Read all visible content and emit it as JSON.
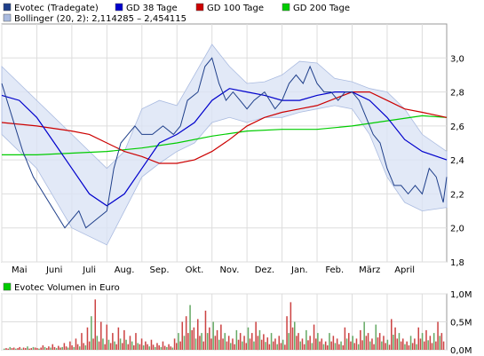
{
  "chart_data": [
    {
      "type": "line",
      "title": "",
      "xlabel": "",
      "ylabel": "",
      "ylim": [
        1.8,
        3.2
      ],
      "yticks": [
        1.8,
        2.0,
        2.2,
        2.4,
        2.6,
        2.8,
        3.0
      ],
      "ytick_labels": [
        "1,8",
        "2,0",
        "2,2",
        "2,4",
        "2,6",
        "2,8",
        "3,0"
      ],
      "x_range_months": [
        0,
        12.7
      ],
      "month_ticks": [
        0,
        1,
        2,
        3,
        4,
        5,
        6,
        7,
        8,
        9,
        10,
        11,
        12
      ],
      "month_labels": [
        "Mai",
        "Juni",
        "Juli",
        "Aug.",
        "Sep.",
        "Okt.",
        "Nov.",
        "Dez.",
        "Jan.",
        "Feb.",
        "März",
        "April"
      ],
      "grid": true,
      "legend_position": "top",
      "legend": [
        {
          "label": "Evotec (Tradegate)",
          "color": "#1f3f8a"
        },
        {
          "label": "GD 38 Tage",
          "color": "#0000cc"
        },
        {
          "label": "GD 100 Tage",
          "color": "#cc0000"
        },
        {
          "label": "GD 200 Tage",
          "color": "#00cc00"
        },
        {
          "label": "Bollinger (20, 2): 2,114285 – 2,454115",
          "color": "#aabbe0"
        }
      ],
      "series": [
        {
          "name": "Evotec (Tradegate)",
          "color": "#1f3f8a",
          "points": [
            [
              0,
              2.85
            ],
            [
              0.3,
              2.65
            ],
            [
              0.6,
              2.45
            ],
            [
              0.9,
              2.3
            ],
            [
              1.2,
              2.2
            ],
            [
              1.5,
              2.1
            ],
            [
              1.8,
              2.0
            ],
            [
              2.0,
              2.05
            ],
            [
              2.2,
              2.1
            ],
            [
              2.4,
              2.0
            ],
            [
              2.7,
              2.05
            ],
            [
              3.0,
              2.1
            ],
            [
              3.2,
              2.35
            ],
            [
              3.4,
              2.5
            ],
            [
              3.6,
              2.55
            ],
            [
              3.8,
              2.6
            ],
            [
              4.0,
              2.55
            ],
            [
              4.3,
              2.55
            ],
            [
              4.6,
              2.6
            ],
            [
              4.9,
              2.55
            ],
            [
              5.1,
              2.6
            ],
            [
              5.3,
              2.75
            ],
            [
              5.6,
              2.8
            ],
            [
              5.8,
              2.95
            ],
            [
              6.0,
              3.0
            ],
            [
              6.2,
              2.85
            ],
            [
              6.4,
              2.75
            ],
            [
              6.6,
              2.8
            ],
            [
              6.8,
              2.75
            ],
            [
              7.0,
              2.7
            ],
            [
              7.2,
              2.75
            ],
            [
              7.5,
              2.8
            ],
            [
              7.8,
              2.7
            ],
            [
              8.0,
              2.75
            ],
            [
              8.2,
              2.85
            ],
            [
              8.4,
              2.9
            ],
            [
              8.6,
              2.85
            ],
            [
              8.8,
              2.95
            ],
            [
              9.0,
              2.85
            ],
            [
              9.2,
              2.8
            ],
            [
              9.4,
              2.8
            ],
            [
              9.6,
              2.75
            ],
            [
              9.8,
              2.8
            ],
            [
              10.0,
              2.8
            ],
            [
              10.2,
              2.75
            ],
            [
              10.4,
              2.65
            ],
            [
              10.6,
              2.55
            ],
            [
              10.8,
              2.5
            ],
            [
              11.0,
              2.35
            ],
            [
              11.2,
              2.25
            ],
            [
              11.4,
              2.25
            ],
            [
              11.6,
              2.2
            ],
            [
              11.8,
              2.25
            ],
            [
              12.0,
              2.2
            ],
            [
              12.2,
              2.35
            ],
            [
              12.4,
              2.3
            ],
            [
              12.6,
              2.15
            ],
            [
              12.7,
              2.3
            ]
          ]
        },
        {
          "name": "GD 38 Tage",
          "color": "#0000cc",
          "points": [
            [
              0,
              2.78
            ],
            [
              0.5,
              2.75
            ],
            [
              1.0,
              2.65
            ],
            [
              1.5,
              2.5
            ],
            [
              2.0,
              2.35
            ],
            [
              2.5,
              2.2
            ],
            [
              3.0,
              2.13
            ],
            [
              3.5,
              2.2
            ],
            [
              4.0,
              2.35
            ],
            [
              4.5,
              2.5
            ],
            [
              5.0,
              2.55
            ],
            [
              5.5,
              2.62
            ],
            [
              6.0,
              2.75
            ],
            [
              6.5,
              2.82
            ],
            [
              7.0,
              2.8
            ],
            [
              7.5,
              2.78
            ],
            [
              8.0,
              2.75
            ],
            [
              8.5,
              2.75
            ],
            [
              9.0,
              2.78
            ],
            [
              9.5,
              2.8
            ],
            [
              10.0,
              2.8
            ],
            [
              10.5,
              2.75
            ],
            [
              11.0,
              2.65
            ],
            [
              11.5,
              2.52
            ],
            [
              12.0,
              2.45
            ],
            [
              12.7,
              2.4
            ]
          ]
        },
        {
          "name": "GD 100 Tage",
          "color": "#cc0000",
          "points": [
            [
              0,
              2.62
            ],
            [
              1.0,
              2.6
            ],
            [
              2.0,
              2.57
            ],
            [
              2.5,
              2.55
            ],
            [
              3.0,
              2.5
            ],
            [
              3.5,
              2.45
            ],
            [
              4.0,
              2.42
            ],
            [
              4.5,
              2.38
            ],
            [
              5.0,
              2.38
            ],
            [
              5.5,
              2.4
            ],
            [
              6.0,
              2.45
            ],
            [
              6.5,
              2.52
            ],
            [
              7.0,
              2.6
            ],
            [
              7.5,
              2.65
            ],
            [
              8.0,
              2.68
            ],
            [
              8.5,
              2.7
            ],
            [
              9.0,
              2.72
            ],
            [
              9.5,
              2.76
            ],
            [
              10.0,
              2.8
            ],
            [
              10.5,
              2.8
            ],
            [
              11.0,
              2.75
            ],
            [
              11.5,
              2.7
            ],
            [
              12.0,
              2.68
            ],
            [
              12.7,
              2.65
            ]
          ]
        },
        {
          "name": "GD 200 Tage",
          "color": "#00cc00",
          "points": [
            [
              0,
              2.43
            ],
            [
              1.0,
              2.43
            ],
            [
              2.0,
              2.44
            ],
            [
              3.0,
              2.45
            ],
            [
              4.0,
              2.47
            ],
            [
              5.0,
              2.5
            ],
            [
              6.0,
              2.54
            ],
            [
              7.0,
              2.57
            ],
            [
              8.0,
              2.58
            ],
            [
              9.0,
              2.58
            ],
            [
              10.0,
              2.6
            ],
            [
              11.0,
              2.63
            ],
            [
              12.0,
              2.66
            ],
            [
              12.7,
              2.65
            ]
          ]
        }
      ],
      "bollinger_band": {
        "label": "Bollinger (20, 2): 2,114285 – 2,454115",
        "upper": [
          [
            0,
            2.95
          ],
          [
            1.0,
            2.75
          ],
          [
            2.0,
            2.55
          ],
          [
            3.0,
            2.35
          ],
          [
            3.5,
            2.45
          ],
          [
            4.0,
            2.7
          ],
          [
            4.5,
            2.75
          ],
          [
            5.0,
            2.72
          ],
          [
            5.5,
            2.9
          ],
          [
            6.0,
            3.08
          ],
          [
            6.5,
            2.95
          ],
          [
            7.0,
            2.85
          ],
          [
            7.5,
            2.86
          ],
          [
            8.0,
            2.9
          ],
          [
            8.5,
            2.98
          ],
          [
            9.0,
            2.97
          ],
          [
            9.5,
            2.88
          ],
          [
            10.0,
            2.86
          ],
          [
            10.5,
            2.82
          ],
          [
            11.0,
            2.8
          ],
          [
            11.5,
            2.7
          ],
          [
            12.0,
            2.55
          ],
          [
            12.7,
            2.45
          ]
        ],
        "lower": [
          [
            0,
            2.55
          ],
          [
            1.0,
            2.35
          ],
          [
            2.0,
            2.0
          ],
          [
            2.5,
            1.95
          ],
          [
            3.0,
            1.9
          ],
          [
            3.5,
            2.1
          ],
          [
            4.0,
            2.3
          ],
          [
            4.5,
            2.38
          ],
          [
            5.0,
            2.45
          ],
          [
            5.5,
            2.5
          ],
          [
            6.0,
            2.62
          ],
          [
            6.5,
            2.65
          ],
          [
            7.0,
            2.62
          ],
          [
            7.5,
            2.65
          ],
          [
            8.0,
            2.65
          ],
          [
            8.5,
            2.68
          ],
          [
            9.0,
            2.7
          ],
          [
            9.5,
            2.72
          ],
          [
            10.0,
            2.7
          ],
          [
            10.5,
            2.55
          ],
          [
            11.0,
            2.3
          ],
          [
            11.5,
            2.15
          ],
          [
            12.0,
            2.1
          ],
          [
            12.7,
            2.12
          ]
        ]
      }
    },
    {
      "type": "bar",
      "title": "Evotec Volumen in Euro",
      "color": "#cc4444",
      "legend": [
        {
          "label": "Evotec Volumen in Euro",
          "color": "#00cc00"
        }
      ],
      "ylim": [
        0,
        1.0
      ],
      "yticks": [
        0,
        0.5,
        1.0
      ],
      "ytick_labels": [
        "0,0M",
        "0,5M",
        "1,0M"
      ],
      "values_millions": [
        0.02,
        0.03,
        0.02,
        0.05,
        0.03,
        0.04,
        0.02,
        0.03,
        0.05,
        0.02,
        0.04,
        0.03,
        0.06,
        0.02,
        0.03,
        0.05,
        0.04,
        0.03,
        0.02,
        0.04,
        0.08,
        0.05,
        0.03,
        0.06,
        0.04,
        0.1,
        0.05,
        0.03,
        0.07,
        0.04,
        0.05,
        0.12,
        0.06,
        0.04,
        0.15,
        0.08,
        0.05,
        0.2,
        0.1,
        0.06,
        0.3,
        0.12,
        0.08,
        0.4,
        0.15,
        0.6,
        0.2,
        0.9,
        0.25,
        0.15,
        0.5,
        0.2,
        0.1,
        0.45,
        0.18,
        0.12,
        0.3,
        0.15,
        0.1,
        0.4,
        0.2,
        0.12,
        0.35,
        0.18,
        0.1,
        0.25,
        0.15,
        0.08,
        0.3,
        0.12,
        0.1,
        0.2,
        0.08,
        0.15,
        0.1,
        0.06,
        0.18,
        0.09,
        0.05,
        0.12,
        0.08,
        0.05,
        0.15,
        0.07,
        0.05,
        0.1,
        0.06,
        0.04,
        0.2,
        0.12,
        0.3,
        0.15,
        0.5,
        0.25,
        0.6,
        0.3,
        0.8,
        0.35,
        0.4,
        0.2,
        0.55,
        0.25,
        0.3,
        0.15,
        0.7,
        0.3,
        0.4,
        0.2,
        0.5,
        0.25,
        0.35,
        0.18,
        0.45,
        0.2,
        0.3,
        0.15,
        0.25,
        0.12,
        0.2,
        0.1,
        0.35,
        0.18,
        0.3,
        0.15,
        0.25,
        0.12,
        0.4,
        0.2,
        0.3,
        0.15,
        0.5,
        0.25,
        0.35,
        0.18,
        0.28,
        0.14,
        0.22,
        0.1,
        0.3,
        0.15,
        0.2,
        0.1,
        0.25,
        0.12,
        0.18,
        0.09,
        0.6,
        0.3,
        0.85,
        0.4,
        0.5,
        0.25,
        0.3,
        0.15,
        0.2,
        0.1,
        0.35,
        0.17,
        0.25,
        0.12,
        0.45,
        0.2,
        0.3,
        0.15,
        0.2,
        0.1,
        0.15,
        0.08,
        0.3,
        0.15,
        0.25,
        0.12,
        0.2,
        0.1,
        0.15,
        0.08,
        0.4,
        0.2,
        0.3,
        0.15,
        0.25,
        0.12,
        0.2,
        0.1,
        0.35,
        0.17,
        0.5,
        0.25,
        0.3,
        0.15,
        0.2,
        0.1,
        0.45,
        0.22,
        0.3,
        0.15,
        0.25,
        0.12,
        0.18,
        0.09,
        0.55,
        0.27,
        0.4,
        0.2,
        0.3,
        0.15,
        0.2,
        0.1,
        0.15,
        0.08,
        0.25,
        0.12,
        0.2,
        0.1,
        0.4,
        0.2,
        0.3,
        0.15,
        0.35,
        0.17,
        0.25,
        0.12,
        0.3,
        0.15,
        0.5,
        0.25,
        0.3,
        0.15
      ]
    }
  ]
}
